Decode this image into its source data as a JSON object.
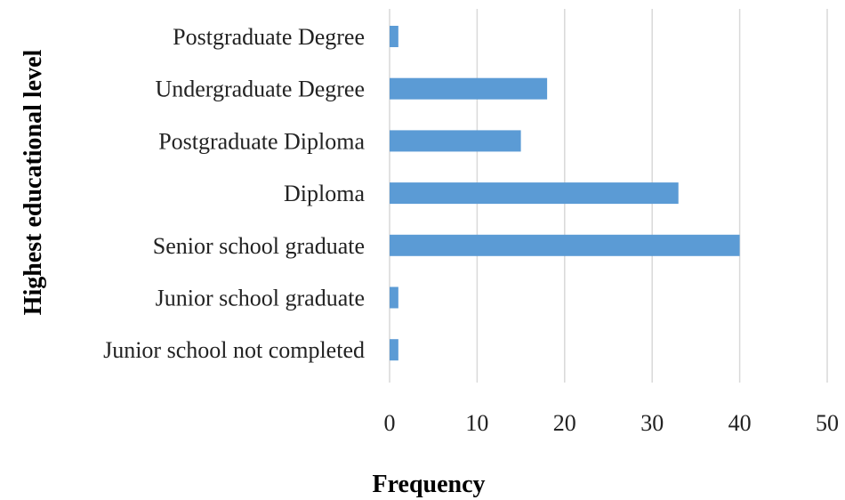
{
  "chart_data": {
    "type": "bar",
    "orientation": "horizontal",
    "categories": [
      "Postgraduate Degree",
      "Undergraduate Degree",
      "Postgraduate Diploma",
      "Diploma",
      "Senior school graduate",
      "Junior school graduate",
      "Junior school not completed"
    ],
    "values": [
      1,
      18,
      15,
      33,
      40,
      1,
      1
    ],
    "xlabel": "Frequency",
    "ylabel": "Highest educational level",
    "xlim": [
      0,
      50
    ],
    "xticks": [
      0,
      10,
      20,
      30,
      40,
      50
    ],
    "grid": "vertical",
    "legend": "none",
    "bar_color": "#5B9BD5",
    "grid_color": "#D9D9D9"
  }
}
